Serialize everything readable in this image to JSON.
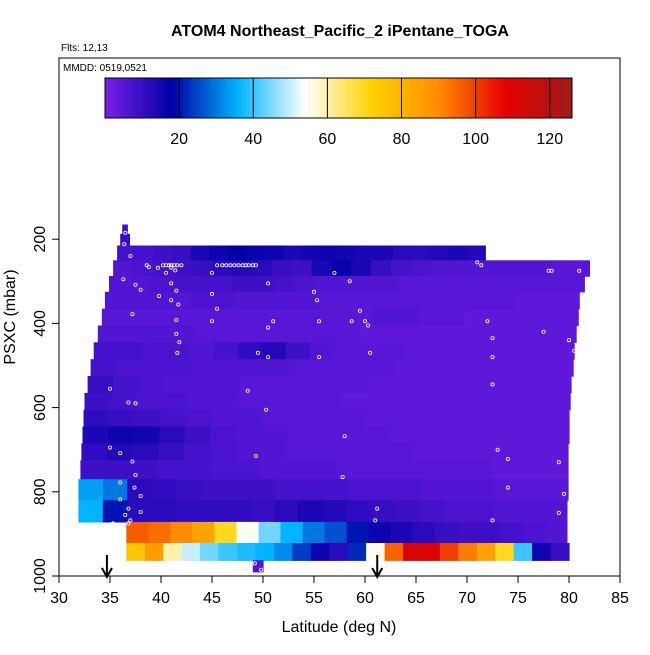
{
  "chart_data": {
    "type": "heatmap",
    "title": "ATOM4 Northeast_Pacific_2 iPentane_TOGA",
    "info_lines": [
      "Flts: 12,13",
      "MMDD: 0519,0521"
    ],
    "xlabel": "Latitude (deg N)",
    "ylabel": "PSXC (mbar)",
    "xlim": [
      30,
      85
    ],
    "ylim": [
      1000,
      0
    ],
    "xticks": [
      "30",
      "35",
      "40",
      "45",
      "50",
      "55",
      "60",
      "65",
      "70",
      "75",
      "80",
      "85"
    ],
    "yticks": [
      "200",
      "400",
      "600",
      "800",
      "1000"
    ],
    "colorbar": {
      "range": [
        0,
        126
      ],
      "ticks": [
        "20",
        "40",
        "60",
        "80",
        "100",
        "120"
      ],
      "colors": [
        "#7a1fe8",
        "#0000a8",
        "#00b4ff",
        "#ffffff",
        "#ffd200",
        "#ff8c00",
        "#e60000",
        "#9c1c1c"
      ]
    },
    "markers": [
      34.7,
      61.2
    ],
    "layers": [
      {
        "p": 175,
        "lat0": 36.2,
        "lat1": 36.7,
        "values": [
          8
        ]
      },
      {
        "p": 200,
        "lat0": 36.0,
        "lat1": 36.9,
        "values": [
          10
        ]
      },
      {
        "p": 230,
        "lat0": 35.7,
        "lat1": 71.8,
        "values": [
          8,
          8,
          9,
          10,
          14,
          16,
          18,
          17,
          16,
          14,
          15,
          16,
          15,
          14,
          14,
          12,
          12,
          13,
          14,
          13
        ]
      },
      {
        "p": 270,
        "lat0": 35.3,
        "lat1": 82.0,
        "values": [
          6,
          7,
          8,
          9,
          10,
          12,
          13,
          12,
          10,
          9,
          14,
          17,
          14,
          10,
          8,
          7,
          6,
          6,
          6,
          6,
          6,
          6,
          5,
          5
        ]
      },
      {
        "p": 305,
        "lat0": 34.9,
        "lat1": 81.5,
        "values": [
          6,
          6,
          7,
          8,
          8,
          8,
          9,
          9,
          8,
          7,
          6,
          6,
          6,
          6,
          5,
          5,
          5,
          5,
          5,
          5,
          5,
          5,
          5
        ]
      },
      {
        "p": 345,
        "lat0": 34.5,
        "lat1": 81.0,
        "values": [
          6,
          6,
          6,
          6,
          7,
          7,
          6,
          6,
          6,
          6,
          5,
          5,
          5,
          5,
          5,
          5,
          5,
          5,
          5,
          4,
          4,
          4
        ]
      },
      {
        "p": 385,
        "lat0": 34.2,
        "lat1": 80.9,
        "values": [
          5,
          5,
          5,
          5,
          5,
          5,
          5,
          5,
          5,
          5,
          5,
          5,
          6,
          6,
          5,
          5,
          4,
          4,
          4,
          4,
          4
        ]
      },
      {
        "p": 425,
        "lat0": 33.8,
        "lat1": 80.7,
        "values": [
          6,
          6,
          6,
          6,
          5,
          5,
          5,
          5,
          5,
          5,
          5,
          4,
          4,
          4,
          4,
          4,
          4,
          4,
          4,
          4
        ]
      },
      {
        "p": 465,
        "lat0": 33.4,
        "lat1": 80.5,
        "values": [
          8,
          8,
          7,
          7,
          6,
          8,
          11,
          13,
          9,
          6,
          5,
          5,
          5,
          4,
          4,
          4,
          4,
          4,
          4,
          4
        ]
      },
      {
        "p": 505,
        "lat0": 33.1,
        "lat1": 80.4,
        "values": [
          8,
          7,
          7,
          7,
          6,
          6,
          6,
          6,
          5,
          5,
          5,
          5,
          4,
          4,
          4,
          4,
          4,
          4,
          4
        ]
      },
      {
        "p": 545,
        "lat0": 32.8,
        "lat1": 80.2,
        "values": [
          10,
          8,
          7,
          6,
          6,
          6,
          5,
          5,
          5,
          5,
          5,
          4,
          4,
          4,
          4,
          4,
          4,
          4,
          4
        ]
      },
      {
        "p": 585,
        "lat0": 32.5,
        "lat1": 80.1,
        "values": [
          9,
          8,
          7,
          7,
          6,
          6,
          5,
          5,
          5,
          5,
          4,
          4,
          4,
          4,
          4,
          4,
          4,
          4,
          4
        ]
      },
      {
        "p": 625,
        "lat0": 32.4,
        "lat1": 80.0,
        "values": [
          11,
          10,
          9,
          8,
          7,
          6,
          6,
          5,
          5,
          5,
          5,
          4,
          4,
          4,
          4,
          4,
          4,
          4,
          4
        ]
      },
      {
        "p": 665,
        "lat0": 32.3,
        "lat1": 80.0,
        "values": [
          14,
          16,
          15,
          12,
          9,
          7,
          6,
          6,
          5,
          5,
          5,
          5,
          4,
          4,
          4,
          4,
          4,
          4,
          4
        ]
      },
      {
        "p": 705,
        "lat0": 32.2,
        "lat1": 79.9,
        "values": [
          11,
          13,
          12,
          10,
          8,
          7,
          6,
          6,
          5,
          5,
          5,
          5,
          5,
          4,
          4,
          4,
          4,
          4,
          4
        ]
      },
      {
        "p": 745,
        "lat0": 32.1,
        "lat1": 79.9,
        "values": [
          9,
          9,
          9,
          8,
          8,
          7,
          7,
          6,
          6,
          6,
          5,
          5,
          5,
          5,
          5,
          5,
          4,
          4,
          4
        ]
      },
      {
        "p": 795,
        "lat0": 31.9,
        "lat1": 79.9,
        "values": [
          34,
          30,
          12,
          11,
          10,
          9,
          9,
          9,
          8,
          8,
          8,
          7,
          7,
          7,
          6,
          6,
          6,
          5,
          5,
          5
        ]
      },
      {
        "p": 845,
        "lat0": 31.9,
        "lat1": 79.8,
        "values": [
          36,
          20,
          12,
          12,
          11,
          11,
          11,
          10,
          12,
          14,
          13,
          11,
          10,
          9,
          8,
          7,
          7,
          6,
          6,
          6
        ]
      },
      {
        "p": 898,
        "lat0": 36.6,
        "lat1": 79.8,
        "values": [
          96,
          94,
          90,
          84,
          70,
          55,
          44,
          36,
          30,
          26,
          20,
          16,
          14,
          12,
          10,
          9,
          9,
          8,
          7,
          6
        ]
      },
      {
        "p": 945,
        "lat0": 36.6,
        "lat1": 80.0,
        "values": [
          75,
          86,
          60,
          50,
          44,
          40,
          38,
          36,
          32,
          24,
          16,
          12,
          22,
          55,
          95,
          112,
          110,
          100,
          92,
          85,
          70,
          40,
          16,
          10
        ]
      },
      {
        "p": 980,
        "lat0": 49.0,
        "lat1": 50.0,
        "values": [
          6
        ]
      }
    ],
    "points": [
      [
        36.5,
        185
      ],
      [
        36.4,
        212
      ],
      [
        37.0,
        240
      ],
      [
        38.6,
        262
      ],
      [
        38.8,
        266
      ],
      [
        39.7,
        268
      ],
      [
        40.2,
        262
      ],
      [
        40.5,
        262
      ],
      [
        40.8,
        262
      ],
      [
        41.0,
        262
      ],
      [
        41.3,
        262
      ],
      [
        41.6,
        262
      ],
      [
        42.0,
        262
      ],
      [
        41.0,
        268
      ],
      [
        41.4,
        274
      ],
      [
        40.5,
        280
      ],
      [
        45.0,
        280
      ],
      [
        45.5,
        262
      ],
      [
        46.0,
        262
      ],
      [
        46.4,
        262
      ],
      [
        46.8,
        262
      ],
      [
        47.2,
        262
      ],
      [
        47.6,
        262
      ],
      [
        48.0,
        262
      ],
      [
        48.3,
        262
      ],
      [
        48.6,
        262
      ],
      [
        49.0,
        262
      ],
      [
        49.3,
        262
      ],
      [
        71.0,
        255
      ],
      [
        71.4,
        262
      ],
      [
        78.0,
        275
      ],
      [
        78.3,
        275
      ],
      [
        81.0,
        275
      ],
      [
        36.3,
        295
      ],
      [
        37.5,
        308
      ],
      [
        41.0,
        305
      ],
      [
        41.5,
        322
      ],
      [
        45.0,
        330
      ],
      [
        50.5,
        305
      ],
      [
        55.0,
        325
      ],
      [
        57.0,
        280
      ],
      [
        58.5,
        300
      ],
      [
        38.0,
        320
      ],
      [
        39.8,
        335
      ],
      [
        41.0,
        345
      ],
      [
        41.7,
        355
      ],
      [
        45.5,
        365
      ],
      [
        55.3,
        345
      ],
      [
        59.5,
        370
      ],
      [
        60.0,
        395
      ],
      [
        60.3,
        405
      ],
      [
        37.2,
        378
      ],
      [
        41.5,
        392
      ],
      [
        45.0,
        395
      ],
      [
        50.5,
        410
      ],
      [
        51.0,
        395
      ],
      [
        55.5,
        395
      ],
      [
        58.7,
        395
      ],
      [
        72.0,
        395
      ],
      [
        72.5,
        435
      ],
      [
        77.5,
        420
      ],
      [
        41.5,
        425
      ],
      [
        41.8,
        445
      ],
      [
        41.6,
        470
      ],
      [
        49.5,
        470
      ],
      [
        50.5,
        480
      ],
      [
        55.5,
        480
      ],
      [
        60.5,
        470
      ],
      [
        72.5,
        480
      ],
      [
        80.0,
        440
      ],
      [
        80.5,
        465
      ],
      [
        48.5,
        560
      ],
      [
        35.0,
        555
      ],
      [
        36.8,
        588
      ],
      [
        37.5,
        590
      ],
      [
        50.3,
        605
      ],
      [
        72.5,
        545
      ],
      [
        35.0,
        695
      ],
      [
        36.0,
        708
      ],
      [
        37.2,
        728
      ],
      [
        37.5,
        760
      ],
      [
        49.3,
        715
      ],
      [
        58.0,
        668
      ],
      [
        73.0,
        700
      ],
      [
        74.0,
        722
      ],
      [
        79.0,
        730
      ],
      [
        36.0,
        778
      ],
      [
        37.4,
        790
      ],
      [
        38.0,
        810
      ],
      [
        57.8,
        765
      ],
      [
        74.0,
        790
      ],
      [
        79.5,
        805
      ],
      [
        36.0,
        818
      ],
      [
        36.8,
        840
      ],
      [
        36.5,
        855
      ],
      [
        37.0,
        868
      ],
      [
        38.0,
        848
      ],
      [
        61.2,
        840
      ],
      [
        61.0,
        868
      ],
      [
        72.5,
        868
      ],
      [
        79.0,
        850
      ],
      [
        35.3,
        875
      ],
      [
        36.2,
        880
      ],
      [
        36.8,
        875
      ],
      [
        49.2,
        970
      ],
      [
        49.8,
        985
      ],
      [
        61.5,
        945
      ]
    ]
  }
}
